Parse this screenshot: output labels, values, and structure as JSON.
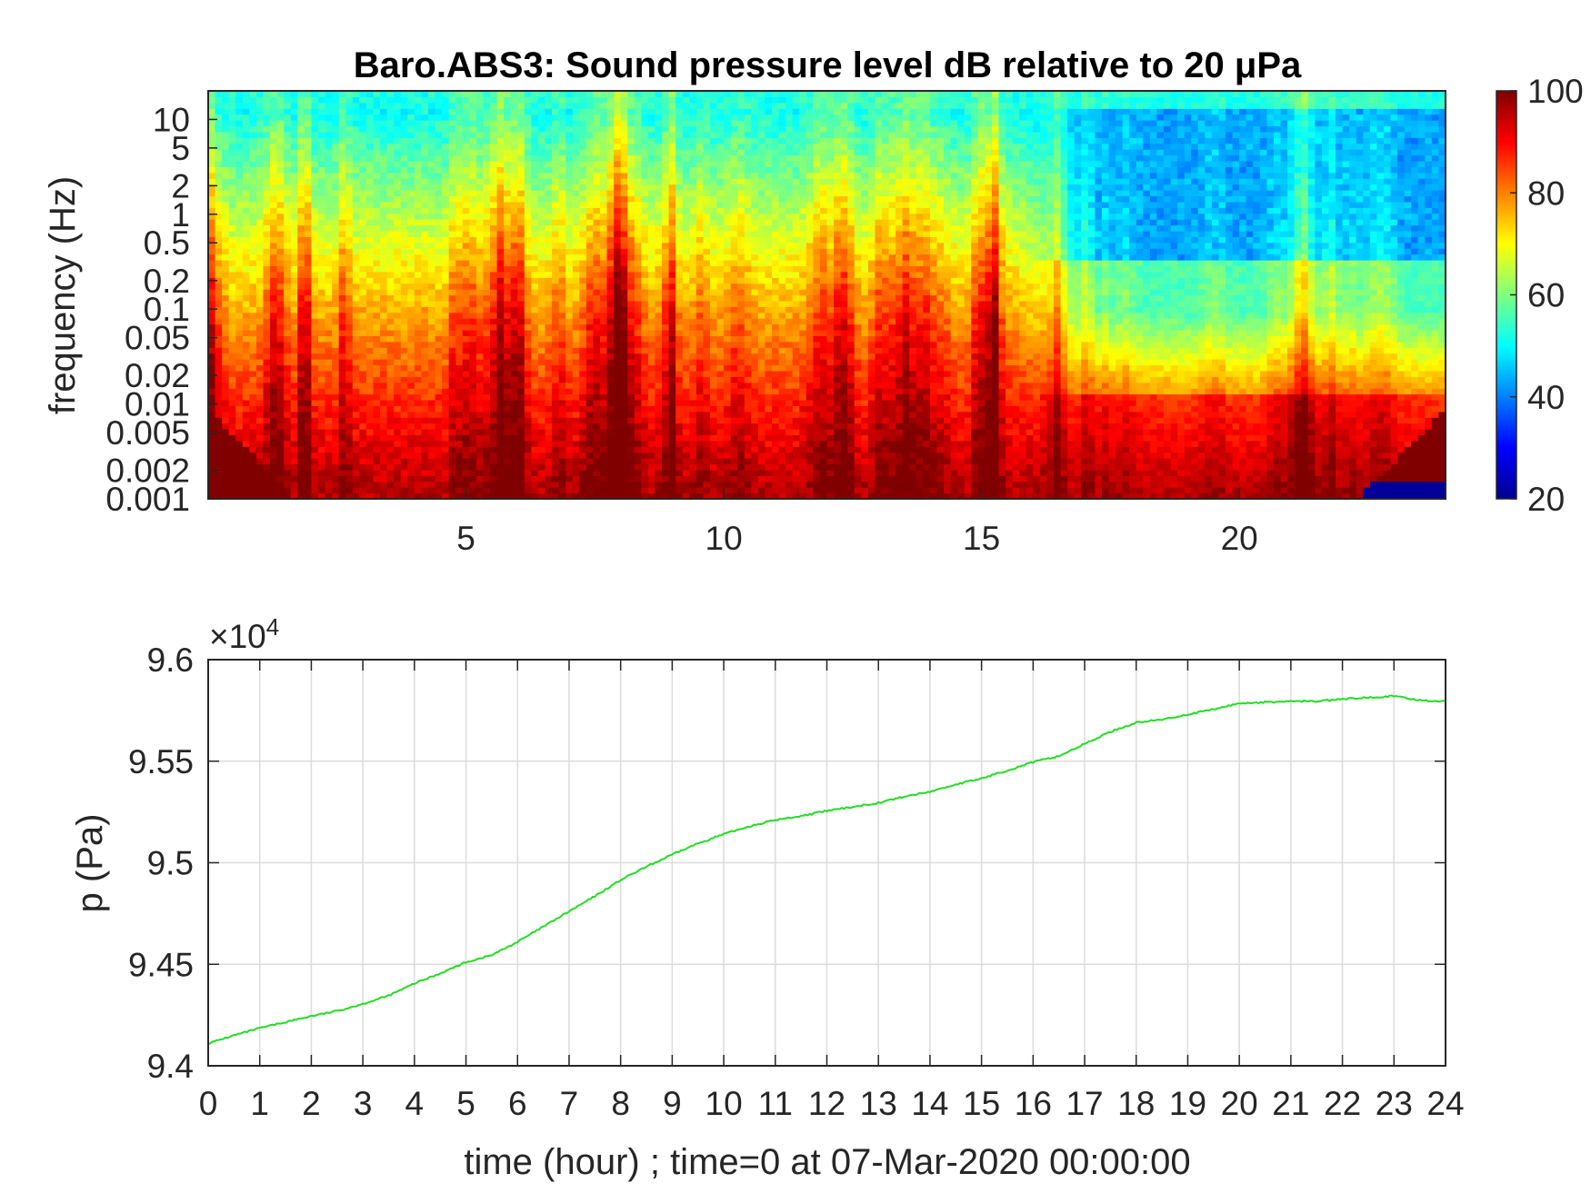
{
  "chart_data": [
    {
      "type": "heatmap",
      "title": "Baro.ABS3: Sound pressure level dB relative to 20 μPa",
      "xlabel": "",
      "ylabel": "frequency (Hz)",
      "x_range": [
        0,
        24
      ],
      "x_ticks": [
        "5",
        "10",
        "15",
        "20"
      ],
      "x_tick_values": [
        5,
        10,
        15,
        20
      ],
      "y_scale": "log",
      "y_range": [
        0.001,
        20
      ],
      "y_ticks": [
        "0.001",
        "0.002",
        "0.005",
        "0.01",
        "0.02",
        "0.05",
        "0.1",
        "0.2",
        "0.5",
        "1",
        "2",
        "5",
        "10"
      ],
      "y_tick_values": [
        0.001,
        0.002,
        0.005,
        0.01,
        0.02,
        0.05,
        0.1,
        0.2,
        0.5,
        1,
        2,
        5,
        10
      ],
      "colorbar": {
        "range": [
          20,
          100
        ],
        "ticks": [
          "20",
          "40",
          "60",
          "80",
          "100"
        ],
        "tick_values": [
          20,
          40,
          60,
          80,
          100
        ],
        "colormap": "jet"
      }
    },
    {
      "type": "line",
      "xlabel": "time (hour) ; time=0 at 07-Mar-2020 00:00:00",
      "ylabel": "p (Pa)",
      "exponent_label": "×10",
      "exponent_power": "4",
      "grid": true,
      "x_range": [
        0,
        24
      ],
      "x_ticks": [
        "0",
        "1",
        "2",
        "3",
        "4",
        "5",
        "6",
        "7",
        "8",
        "9",
        "10",
        "11",
        "12",
        "13",
        "14",
        "15",
        "16",
        "17",
        "18",
        "19",
        "20",
        "21",
        "22",
        "23",
        "24"
      ],
      "ylim": [
        94000,
        96000
      ],
      "y_ticks": [
        "9.4",
        "9.45",
        "9.5",
        "9.55",
        "9.6"
      ],
      "y_tick_values": [
        94000,
        94500,
        95000,
        95500,
        96000
      ],
      "line_color": "#22dd22",
      "series": [
        {
          "x": [
            0,
            0.5,
            1,
            1.5,
            2,
            2.5,
            3,
            3.5,
            4,
            4.5,
            5,
            5.5,
            6,
            6.5,
            7,
            7.5,
            8,
            8.5,
            9,
            9.5,
            10,
            10.5,
            11,
            11.5,
            12,
            12.5,
            13,
            13.5,
            14,
            14.5,
            15,
            15.5,
            16,
            16.5,
            17,
            17.5,
            18,
            18.5,
            19,
            19.5,
            20,
            20.5,
            21,
            21.5,
            22,
            22.5,
            23,
            23.5,
            24
          ],
          "values": [
            94110,
            94150,
            94185,
            94215,
            94245,
            94270,
            94305,
            94345,
            94405,
            94455,
            94510,
            94545,
            94610,
            94685,
            94760,
            94835,
            94915,
            94980,
            95040,
            95095,
            95140,
            95180,
            95210,
            95230,
            95255,
            95275,
            95295,
            95325,
            95350,
            95385,
            95415,
            95455,
            95495,
            95525,
            95585,
            95645,
            95690,
            95705,
            95730,
            95755,
            95785,
            95790,
            95795,
            95795,
            95805,
            95815,
            95820,
            95800,
            95795
          ]
        }
      ]
    }
  ]
}
